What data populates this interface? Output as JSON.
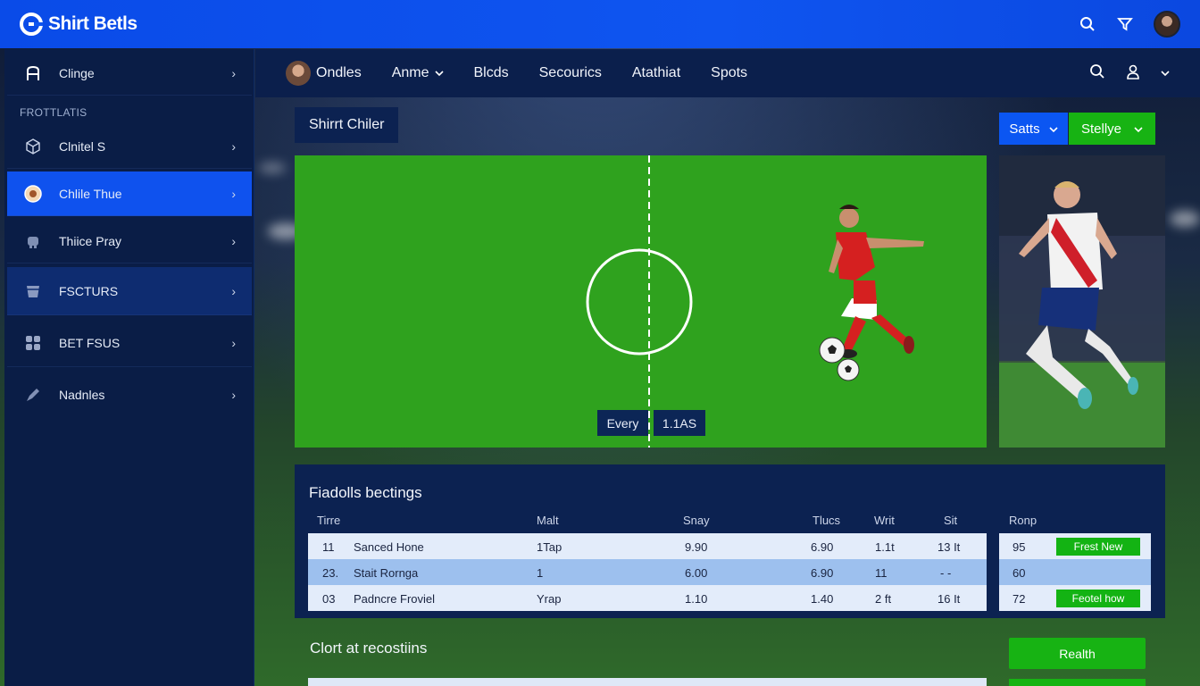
{
  "topbar": {
    "brand": "Shirt Betls",
    "icons": [
      "search-icon",
      "filter-icon",
      "avatar"
    ]
  },
  "sidebar": {
    "first_item": {
      "label": "Clinge",
      "icon": "text-a-icon"
    },
    "section_label": "FROTTLATIS",
    "items": [
      {
        "label": "Clnitel S",
        "icon": "cube-icon"
      },
      {
        "label": "Chlile Thue",
        "icon": "ball-icon",
        "active": true
      },
      {
        "label": "Thiice Pray",
        "icon": "robot-icon"
      },
      {
        "label": "FSCTURS",
        "icon": "cup-icon"
      },
      {
        "label": "BET FSUS",
        "icon": "grid-icon"
      },
      {
        "label": "Nadnles",
        "icon": "pen-icon"
      }
    ]
  },
  "nav": {
    "items": [
      "Ondles",
      "Anme",
      "Blcds",
      "Secourics",
      "Atathiat",
      "Spots"
    ],
    "icons": [
      "search-icon",
      "user-icon",
      "chevron-down-icon"
    ]
  },
  "match": {
    "title": "Shirrt Chiler",
    "score_left": "Every",
    "score_right": "1.1AS",
    "btn_blue": "Satts",
    "btn_green": "Stellye"
  },
  "bets": {
    "title": "Fiadolls bectings",
    "headers": [
      "Tirre",
      "Malt",
      "Snay",
      "Tlucs",
      "Writ",
      "Sit",
      "Ronp"
    ],
    "rows": [
      {
        "num": "11",
        "name": "Sanced Hone",
        "malt": "1Tap",
        "snay": "9.90",
        "tlucs": "6.90",
        "writ": "1.1t",
        "sit": "13 It",
        "ronp": "95",
        "action": "Frest New"
      },
      {
        "num": "23.",
        "name": "Stait Rornga",
        "malt": "1",
        "snay": "6.00",
        "tlucs": "6.90",
        "writ": "11",
        "sit": "- -",
        "ronp": "60",
        "action": ""
      },
      {
        "num": "03",
        "name": "Padncre Froviel",
        "malt": "Yrap",
        "snay": "1.10",
        "tlucs": "1.40",
        "writ": "2 ft",
        "sit": "16 It",
        "ronp": "72",
        "action": "Feotel how"
      }
    ]
  },
  "recos": {
    "title": "Clort at recostiins",
    "button": "Realth"
  },
  "colors": {
    "topbar": "#0f55f0",
    "sidebar": "#0a1d46",
    "accent_blue": "#0f52ee",
    "accent_green": "#17b313",
    "pitch": "#2fa21e"
  }
}
